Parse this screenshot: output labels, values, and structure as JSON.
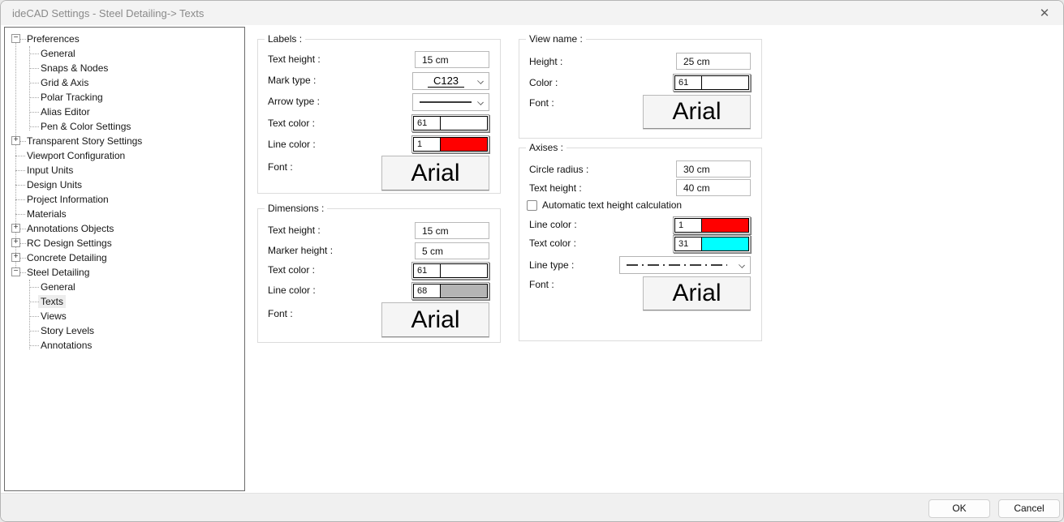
{
  "window": {
    "title": "ideCAD Settings - Steel Detailing-> Texts",
    "close_glyph": "✕"
  },
  "tree": {
    "items": [
      {
        "label": "Preferences",
        "level": 0,
        "expander": "minus"
      },
      {
        "label": "General",
        "level": 1
      },
      {
        "label": "Snaps & Nodes",
        "level": 1
      },
      {
        "label": "Grid & Axis",
        "level": 1
      },
      {
        "label": "Polar Tracking",
        "level": 1
      },
      {
        "label": "Alias Editor",
        "level": 1
      },
      {
        "label": "Pen & Color Settings",
        "level": 1
      },
      {
        "label": "Transparent Story Settings",
        "level": 0,
        "expander": "plus"
      },
      {
        "label": "Viewport Configuration",
        "level": 0
      },
      {
        "label": "Input Units",
        "level": 0
      },
      {
        "label": "Design Units",
        "level": 0
      },
      {
        "label": "Project Information",
        "level": 0
      },
      {
        "label": "Materials",
        "level": 0
      },
      {
        "label": "Annotations Objects",
        "level": 0,
        "expander": "plus"
      },
      {
        "label": "RC Design Settings",
        "level": 0,
        "expander": "plus"
      },
      {
        "label": "Concrete Detailing",
        "level": 0,
        "expander": "plus"
      },
      {
        "label": "Steel Detailing",
        "level": 0,
        "expander": "minus"
      },
      {
        "label": "General",
        "level": 1
      },
      {
        "label": "Texts",
        "level": 1,
        "selected": true
      },
      {
        "label": "Views",
        "level": 1
      },
      {
        "label": "Story Levels",
        "level": 1
      },
      {
        "label": "Annotations",
        "level": 1
      }
    ]
  },
  "panels": {
    "labels": {
      "title": "Labels :",
      "text_height": {
        "label": "Text height :",
        "value": "15 cm"
      },
      "mark_type": {
        "label": "Mark type :",
        "value": "C123"
      },
      "arrow_type": {
        "label": "Arrow type :"
      },
      "text_color": {
        "label": "Text color :",
        "number": "61",
        "color": "#ffffff"
      },
      "line_color": {
        "label": "Line color :",
        "number": "1",
        "color": "#ff0000"
      },
      "font": {
        "label": "Font :",
        "value": "Arial"
      }
    },
    "dimensions": {
      "title": "Dimensions :",
      "text_height": {
        "label": "Text height :",
        "value": "15 cm"
      },
      "marker_height": {
        "label": "Marker height :",
        "value": "5 cm"
      },
      "text_color": {
        "label": "Text color :",
        "number": "61",
        "color": "#ffffff"
      },
      "line_color": {
        "label": "Line color :",
        "number": "68",
        "color": "#b4b4b4"
      },
      "font": {
        "label": "Font :",
        "value": "Arial"
      }
    },
    "view_name": {
      "title": "View name :",
      "height": {
        "label": "Height :",
        "value": "25 cm"
      },
      "color": {
        "label": "Color :",
        "number": "61",
        "color": "#ffffff"
      },
      "font": {
        "label": "Font :",
        "value": "Arial"
      }
    },
    "axises": {
      "title": "Axises :",
      "circle_radius": {
        "label": "Circle radius :",
        "value": "30 cm"
      },
      "text_height": {
        "label": "Text height :",
        "value": "40 cm"
      },
      "auto_text_height": {
        "label": "Automatic text height calculation",
        "checked": false
      },
      "line_color": {
        "label": "Line color :",
        "number": "1",
        "color": "#ff0000"
      },
      "text_color": {
        "label": "Text color :",
        "number": "31",
        "color": "#00ffff"
      },
      "line_type": {
        "label": "Line type :"
      },
      "font": {
        "label": "Font :",
        "value": "Arial"
      }
    }
  },
  "footer": {
    "ok_label": "OK",
    "cancel_label": "Cancel"
  }
}
